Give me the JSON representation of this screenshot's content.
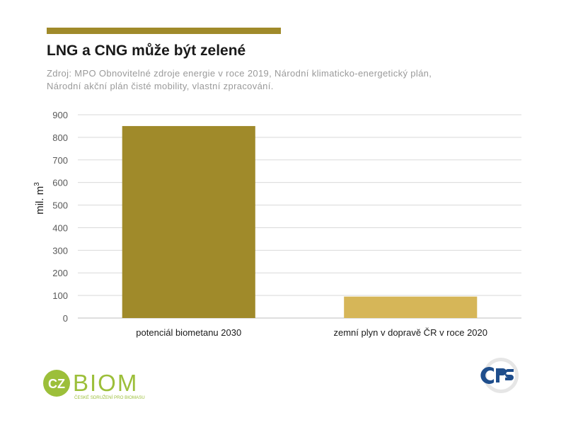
{
  "header": {
    "title": "LNG a CNG může být zelené",
    "source_line1": "Zdroj: MPO Obnovitelné zdroje energie v roce 2019, Národní klimaticko-energetický plán,",
    "source_line2": "Národní akční plán čisté mobility, vlastní zpracování."
  },
  "colors": {
    "accent": "#a08a2a",
    "bar_primary": "#a08a2a",
    "bar_secondary": "#d6b658",
    "grid": "#d9d9d9",
    "tick_text": "#595959",
    "czbiom_green": "#9cbf3a",
    "cps_blue": "#1f4e8c"
  },
  "chart_data": {
    "type": "bar",
    "categories": [
      "potenciál biometanu 2030",
      "zemní plyn v dopravě ČR v roce 2020"
    ],
    "values": [
      850,
      95
    ],
    "ylabel": "mil. m",
    "ylabel_superscript": "3",
    "ylim": [
      0,
      900
    ],
    "yticks": [
      0,
      100,
      200,
      300,
      400,
      500,
      600,
      700,
      800,
      900
    ],
    "grid": true,
    "legend": "none"
  },
  "logos": {
    "czbiom": {
      "badge": "CZ",
      "word": "BIOM",
      "tagline": "ČESKÉ SDRUŽENÍ PRO BIOMASU"
    },
    "cps": {
      "text": "CPS",
      "icon": "cps-logo-icon"
    }
  }
}
